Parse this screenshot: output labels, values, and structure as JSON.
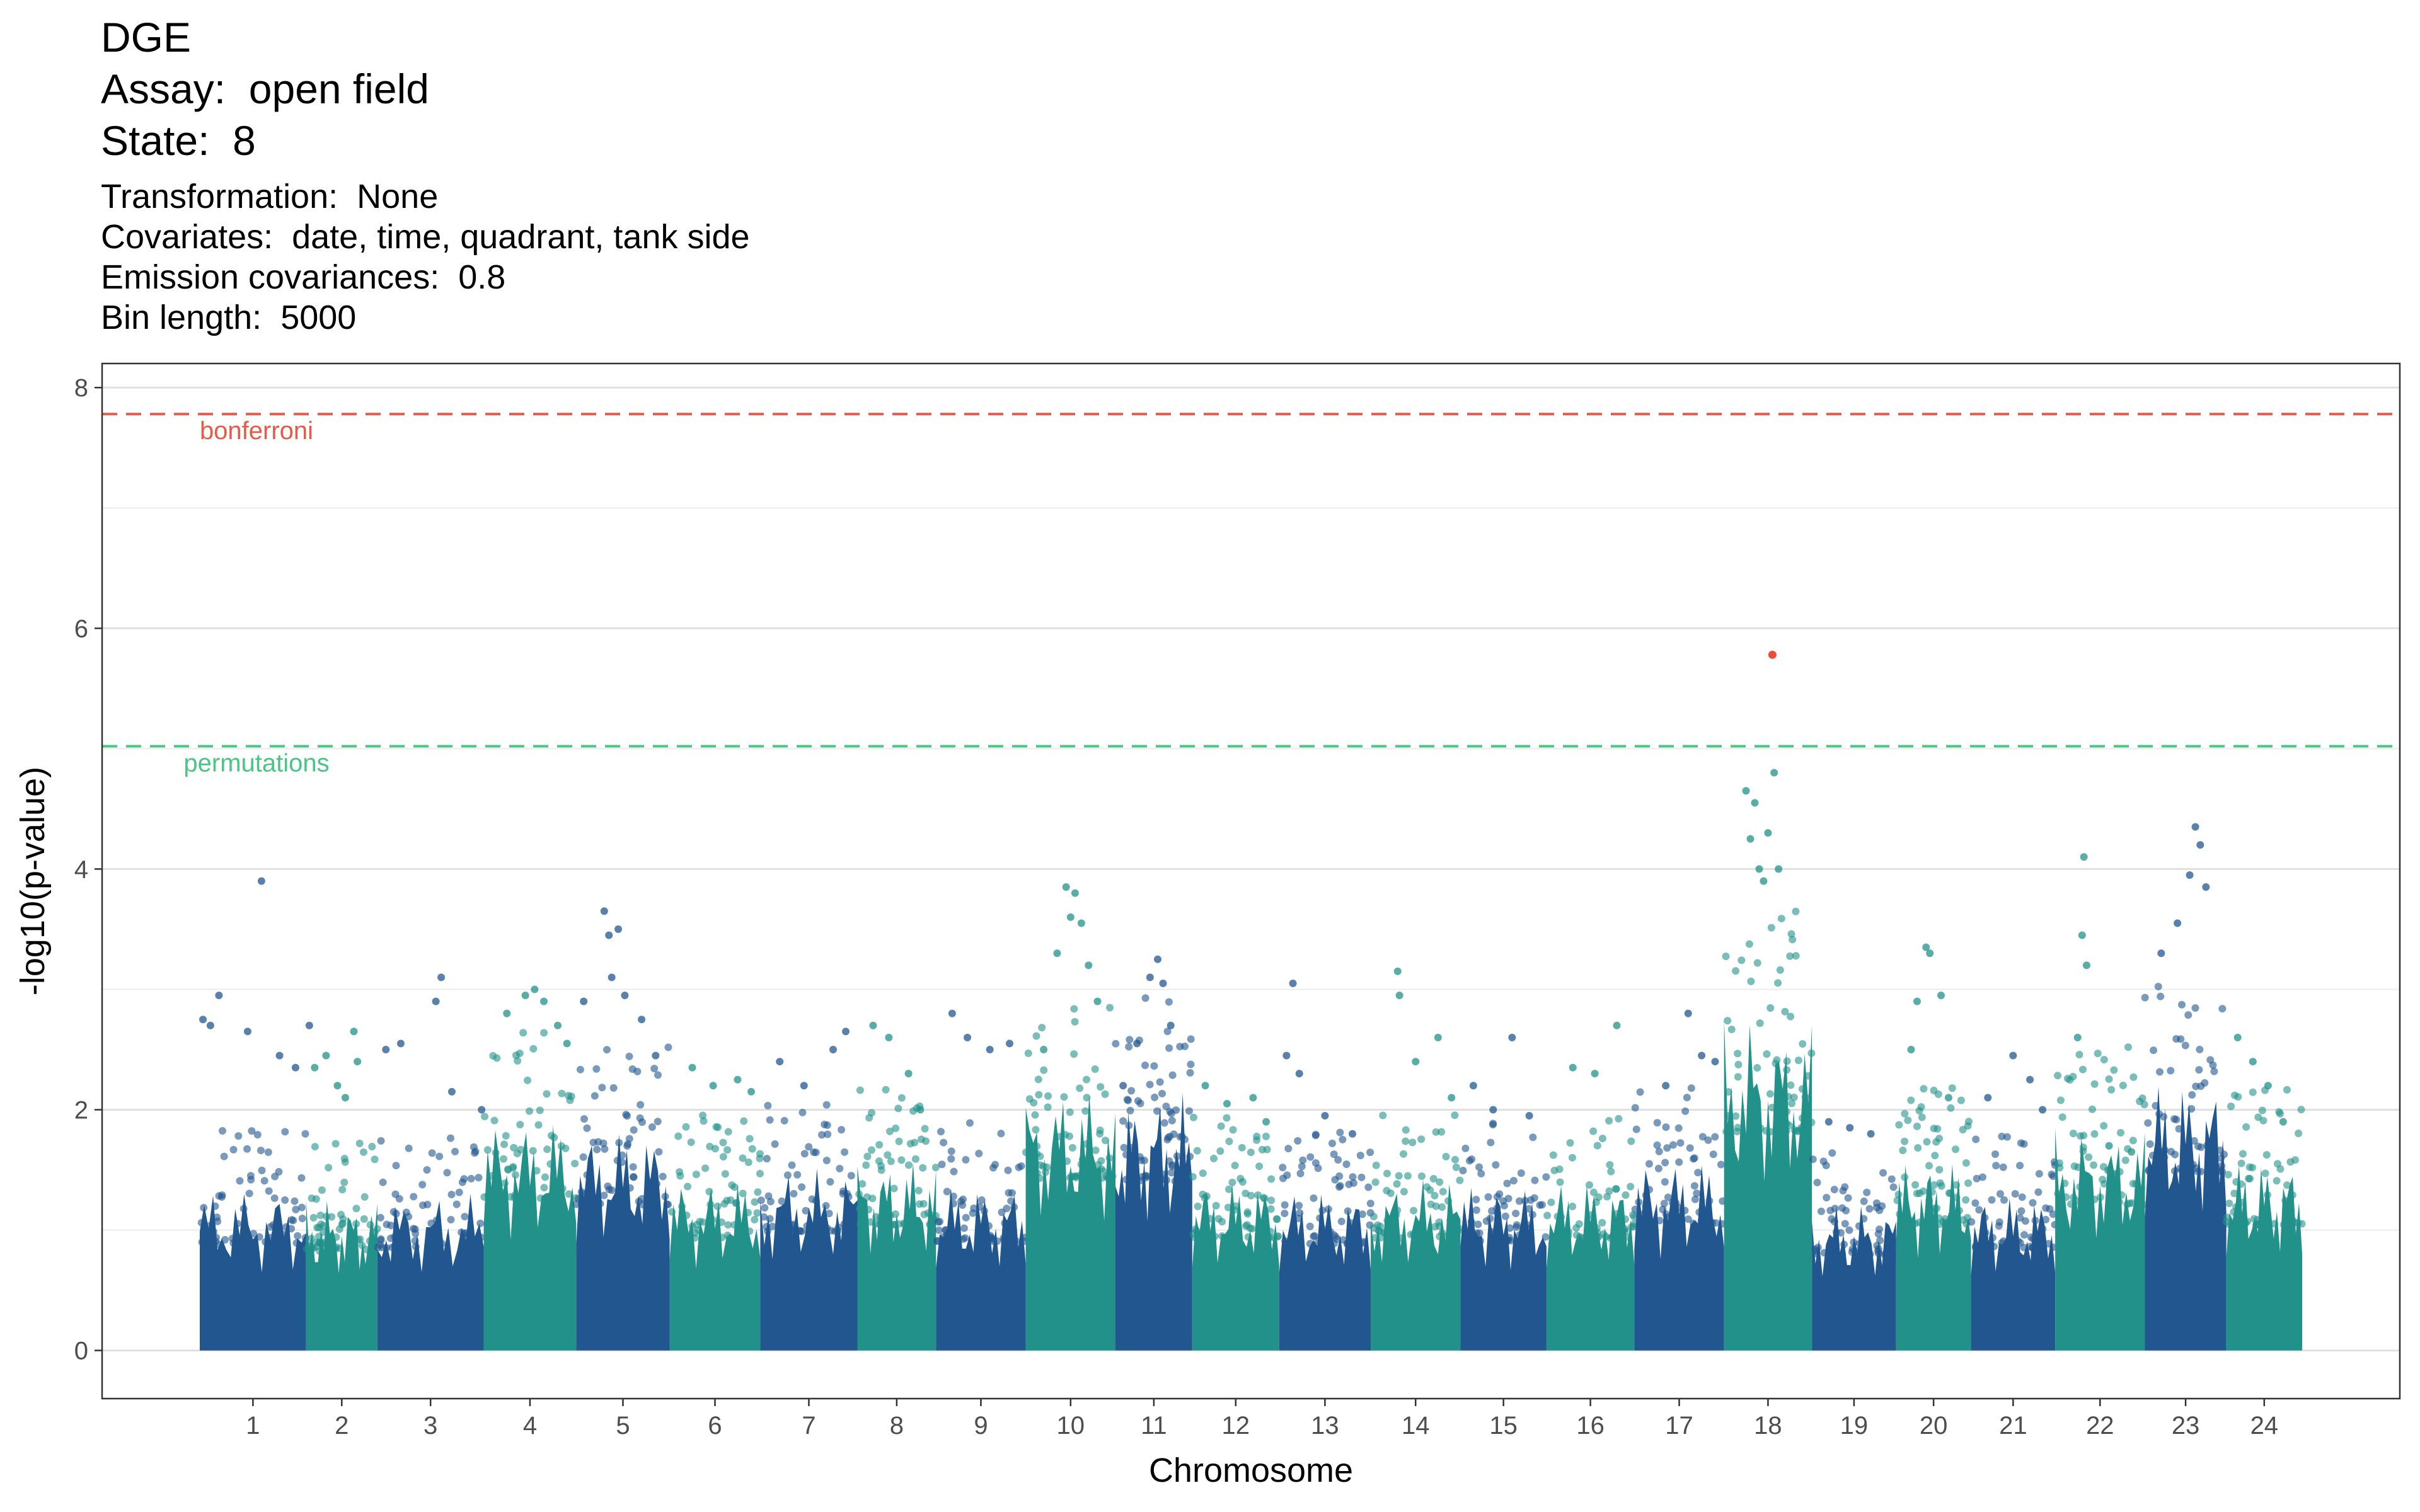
{
  "header": {
    "title": "DGE",
    "assay": "Assay:  open field",
    "state": "State:  8"
  },
  "subtitle": {
    "transformation": "Transformation:  None",
    "covariates": "Covariates:  date, time, quadrant, tank side",
    "emission": "Emission covariances:  0.8",
    "bin_length": "Bin length:  5000"
  },
  "chart_data": {
    "type": "scatter",
    "xlabel": "Chromosome",
    "ylabel": "-log10(p-value)",
    "ylim": [
      -0.4,
      8.2
    ],
    "y_ticks": [
      0,
      2,
      4,
      6,
      8
    ],
    "grid": true,
    "colors": {
      "dark": "#21578e",
      "teal": "#22918a",
      "highlight": "#ee4b3b"
    },
    "thresholds": [
      {
        "label": "bonferroni",
        "value": 7.78,
        "color": "#e85a48"
      },
      {
        "label": "permutations",
        "value": 5.02,
        "color": "#4bc586"
      }
    ],
    "chromosomes": [
      {
        "label": "1",
        "start": 0,
        "end": 115,
        "color": "dark",
        "background_max": 1.6,
        "points": [
          [
            3,
            2.75
          ],
          [
            10,
            2.7
          ],
          [
            18,
            2.95
          ],
          [
            45,
            2.65
          ],
          [
            58,
            3.9
          ],
          [
            75,
            2.45
          ],
          [
            90,
            2.35
          ],
          [
            103,
            2.7
          ]
        ]
      },
      {
        "label": "2",
        "start": 115,
        "end": 192,
        "color": "teal",
        "background_max": 1.5,
        "points": [
          [
            12,
            2.35
          ],
          [
            28,
            2.45
          ],
          [
            44,
            2.2
          ],
          [
            55,
            2.1
          ],
          [
            67,
            2.65
          ],
          [
            72,
            2.4
          ]
        ]
      },
      {
        "label": "3",
        "start": 192,
        "end": 307,
        "color": "dark",
        "background_max": 1.55,
        "points": [
          [
            8,
            2.5
          ],
          [
            22,
            2.55
          ],
          [
            55,
            2.9
          ],
          [
            60,
            3.1
          ],
          [
            70,
            2.15
          ],
          [
            98,
            2.0
          ]
        ]
      },
      {
        "label": "4",
        "start": 307,
        "end": 407,
        "color": "teal",
        "background_max": 2.3,
        "points": [
          [
            25,
            2.8
          ],
          [
            45,
            2.95
          ],
          [
            55,
            3.0
          ],
          [
            65,
            2.9
          ],
          [
            80,
            2.7
          ],
          [
            90,
            2.55
          ]
        ]
      },
      {
        "label": "5",
        "start": 407,
        "end": 508,
        "color": "dark",
        "background_max": 2.2,
        "points": [
          [
            8,
            2.9
          ],
          [
            30,
            3.65
          ],
          [
            35,
            3.45
          ],
          [
            45,
            3.5
          ],
          [
            38,
            3.1
          ],
          [
            52,
            2.95
          ],
          [
            70,
            2.75
          ],
          [
            85,
            2.45
          ]
        ]
      },
      {
        "label": "6",
        "start": 508,
        "end": 606,
        "color": "teal",
        "background_max": 1.7,
        "points": [
          [
            25,
            2.35
          ],
          [
            48,
            2.2
          ],
          [
            75,
            2.25
          ],
          [
            90,
            2.15
          ]
        ]
      },
      {
        "label": "7",
        "start": 606,
        "end": 711,
        "color": "dark",
        "background_max": 1.8,
        "points": [
          [
            20,
            2.4
          ],
          [
            45,
            2.2
          ],
          [
            75,
            2.5
          ],
          [
            88,
            2.65
          ]
        ]
      },
      {
        "label": "8",
        "start": 711,
        "end": 796,
        "color": "teal",
        "background_max": 1.9,
        "points": [
          [
            20,
            2.7
          ],
          [
            40,
            2.6
          ],
          [
            65,
            2.3
          ],
          [
            80,
            2.0
          ]
        ]
      },
      {
        "label": "9",
        "start": 796,
        "end": 893,
        "color": "dark",
        "background_max": 1.65,
        "points": [
          [
            18,
            2.8
          ],
          [
            35,
            2.6
          ],
          [
            60,
            2.5
          ],
          [
            82,
            2.55
          ]
        ]
      },
      {
        "label": "10",
        "start": 893,
        "end": 990,
        "color": "teal",
        "background_max": 2.6,
        "points": [
          [
            20,
            2.5
          ],
          [
            35,
            3.3
          ],
          [
            45,
            3.85
          ],
          [
            50,
            3.6
          ],
          [
            55,
            3.8
          ],
          [
            62,
            3.55
          ],
          [
            70,
            3.2
          ],
          [
            80,
            2.9
          ]
        ]
      },
      {
        "label": "11",
        "start": 990,
        "end": 1073,
        "color": "dark",
        "background_max": 2.55,
        "points": [
          [
            10,
            2.2
          ],
          [
            28,
            2.55
          ],
          [
            45,
            3.1
          ],
          [
            55,
            3.25
          ],
          [
            62,
            3.05
          ],
          [
            72,
            2.7
          ]
        ]
      },
      {
        "label": "12",
        "start": 1073,
        "end": 1167,
        "color": "teal",
        "background_max": 1.7,
        "points": [
          [
            15,
            2.2
          ],
          [
            40,
            2.05
          ],
          [
            70,
            2.1
          ],
          [
            85,
            1.9
          ]
        ]
      },
      {
        "label": "13",
        "start": 1167,
        "end": 1266,
        "color": "dark",
        "background_max": 1.6,
        "points": [
          [
            8,
            2.45
          ],
          [
            15,
            3.05
          ],
          [
            22,
            2.3
          ],
          [
            50,
            1.95
          ],
          [
            80,
            1.8
          ]
        ]
      },
      {
        "label": "14",
        "start": 1266,
        "end": 1363,
        "color": "teal",
        "background_max": 1.7,
        "points": [
          [
            30,
            3.15
          ],
          [
            32,
            2.95
          ],
          [
            50,
            2.4
          ],
          [
            75,
            2.6
          ],
          [
            90,
            2.1
          ]
        ]
      },
      {
        "label": "15",
        "start": 1363,
        "end": 1456,
        "color": "dark",
        "background_max": 1.65,
        "points": [
          [
            15,
            2.2
          ],
          [
            38,
            2.0
          ],
          [
            60,
            2.6
          ],
          [
            80,
            1.95
          ]
        ]
      },
      {
        "label": "16",
        "start": 1456,
        "end": 1551,
        "color": "teal",
        "background_max": 1.7,
        "points": [
          [
            30,
            2.35
          ],
          [
            55,
            2.3
          ],
          [
            80,
            2.7
          ]
        ]
      },
      {
        "label": "17",
        "start": 1551,
        "end": 1648,
        "color": "dark",
        "background_max": 1.9,
        "points": [
          [
            35,
            2.2
          ],
          [
            60,
            2.8
          ],
          [
            75,
            2.45
          ],
          [
            90,
            2.4
          ]
        ]
      },
      {
        "label": "18",
        "start": 1648,
        "end": 1743,
        "color": "teal",
        "background_max": 3.3,
        "points": [
          [
            25,
            4.65
          ],
          [
            30,
            4.25
          ],
          [
            35,
            4.55
          ],
          [
            40,
            4.0
          ],
          [
            45,
            3.9
          ],
          [
            50,
            4.3
          ],
          [
            57,
            4.8
          ],
          [
            62,
            4.0
          ]
        ],
        "highlight": [
          [
            55,
            5.78
          ]
        ]
      },
      {
        "label": "19",
        "start": 1743,
        "end": 1834,
        "color": "dark",
        "background_max": 1.45,
        "points": [
          [
            20,
            1.9
          ],
          [
            45,
            1.85
          ],
          [
            70,
            1.8
          ]
        ]
      },
      {
        "label": "20",
        "start": 1834,
        "end": 1915,
        "color": "teal",
        "background_max": 1.9,
        "points": [
          [
            20,
            2.5
          ],
          [
            28,
            2.9
          ],
          [
            40,
            3.35
          ],
          [
            45,
            3.3
          ],
          [
            60,
            2.95
          ],
          [
            70,
            2.1
          ]
        ]
      },
      {
        "label": "21",
        "start": 1915,
        "end": 2006,
        "color": "dark",
        "background_max": 1.55,
        "points": [
          [
            20,
            2.1
          ],
          [
            50,
            2.45
          ],
          [
            70,
            2.25
          ],
          [
            85,
            2.0
          ]
        ]
      },
      {
        "label": "22",
        "start": 2006,
        "end": 2103,
        "color": "teal",
        "background_max": 2.2,
        "points": [
          [
            25,
            2.6
          ],
          [
            30,
            3.45
          ],
          [
            32,
            4.1
          ],
          [
            35,
            3.2
          ],
          [
            60,
            1.7
          ],
          [
            85,
            1.65
          ]
        ]
      },
      {
        "label": "23",
        "start": 2103,
        "end": 2191,
        "color": "dark",
        "background_max": 2.7,
        "points": [
          [
            20,
            3.3
          ],
          [
            40,
            3.55
          ],
          [
            55,
            3.95
          ],
          [
            62,
            4.35
          ],
          [
            68,
            4.2
          ],
          [
            75,
            3.85
          ]
        ]
      },
      {
        "label": "24",
        "start": 2191,
        "end": 2273,
        "color": "teal",
        "background_max": 1.9,
        "points": [
          [
            15,
            2.6
          ],
          [
            35,
            2.4
          ],
          [
            55,
            2.2
          ],
          [
            75,
            1.9
          ]
        ]
      }
    ]
  }
}
